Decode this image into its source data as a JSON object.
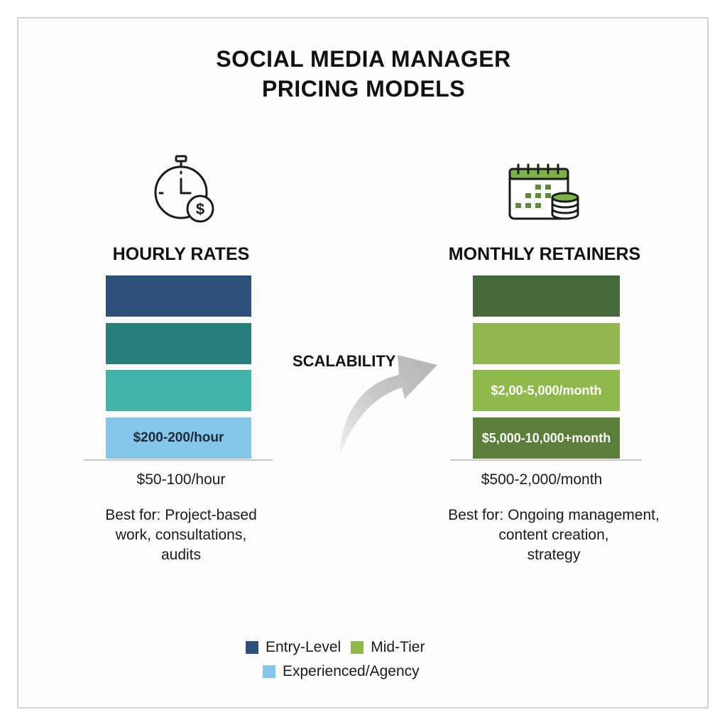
{
  "title": {
    "line1": "SOCIAL MEDIA MANAGER",
    "line2": "PRICING MODELS"
  },
  "center": {
    "label": "SCALABILITY"
  },
  "left": {
    "icon": "stopwatch-dollar-icon",
    "heading": "HOURLY RATES",
    "blocks": [
      {
        "label": "",
        "color": "#2c4f7c"
      },
      {
        "label": "",
        "color": "#2a7e7b"
      },
      {
        "label": "",
        "color": "#42b3a8"
      },
      {
        "label": "$200-200/hour",
        "color": "#86c6ea",
        "text_color": "#1b2a3a"
      }
    ],
    "price": "$50-100/hour",
    "best_for": [
      "Best for: Project-based",
      "work, consultations,",
      "audits"
    ]
  },
  "right": {
    "icon": "calendar-coins-icon",
    "heading": "MONTHLY RETAINERS",
    "blocks": [
      {
        "label": "",
        "color": "#46693a"
      },
      {
        "label": "",
        "color": "#92b651"
      },
      {
        "label": "$2,00-5,000/month",
        "color": "#8fb94a"
      },
      {
        "label": "$5,000-10,000+month",
        "color": "#5b7f3a"
      }
    ],
    "price": "$500-2,000/month",
    "best_for": [
      "Best for: Ongoing management,",
      "content creation,",
      "strategy"
    ]
  },
  "legend": {
    "entry": {
      "label": "Entry-Level",
      "color": "#2c4f7c"
    },
    "mid": {
      "label": "Mid-Tier",
      "color": "#8fb94a"
    },
    "experienced": {
      "label": "Experienced/Agency",
      "color": "#86c6ea"
    }
  }
}
